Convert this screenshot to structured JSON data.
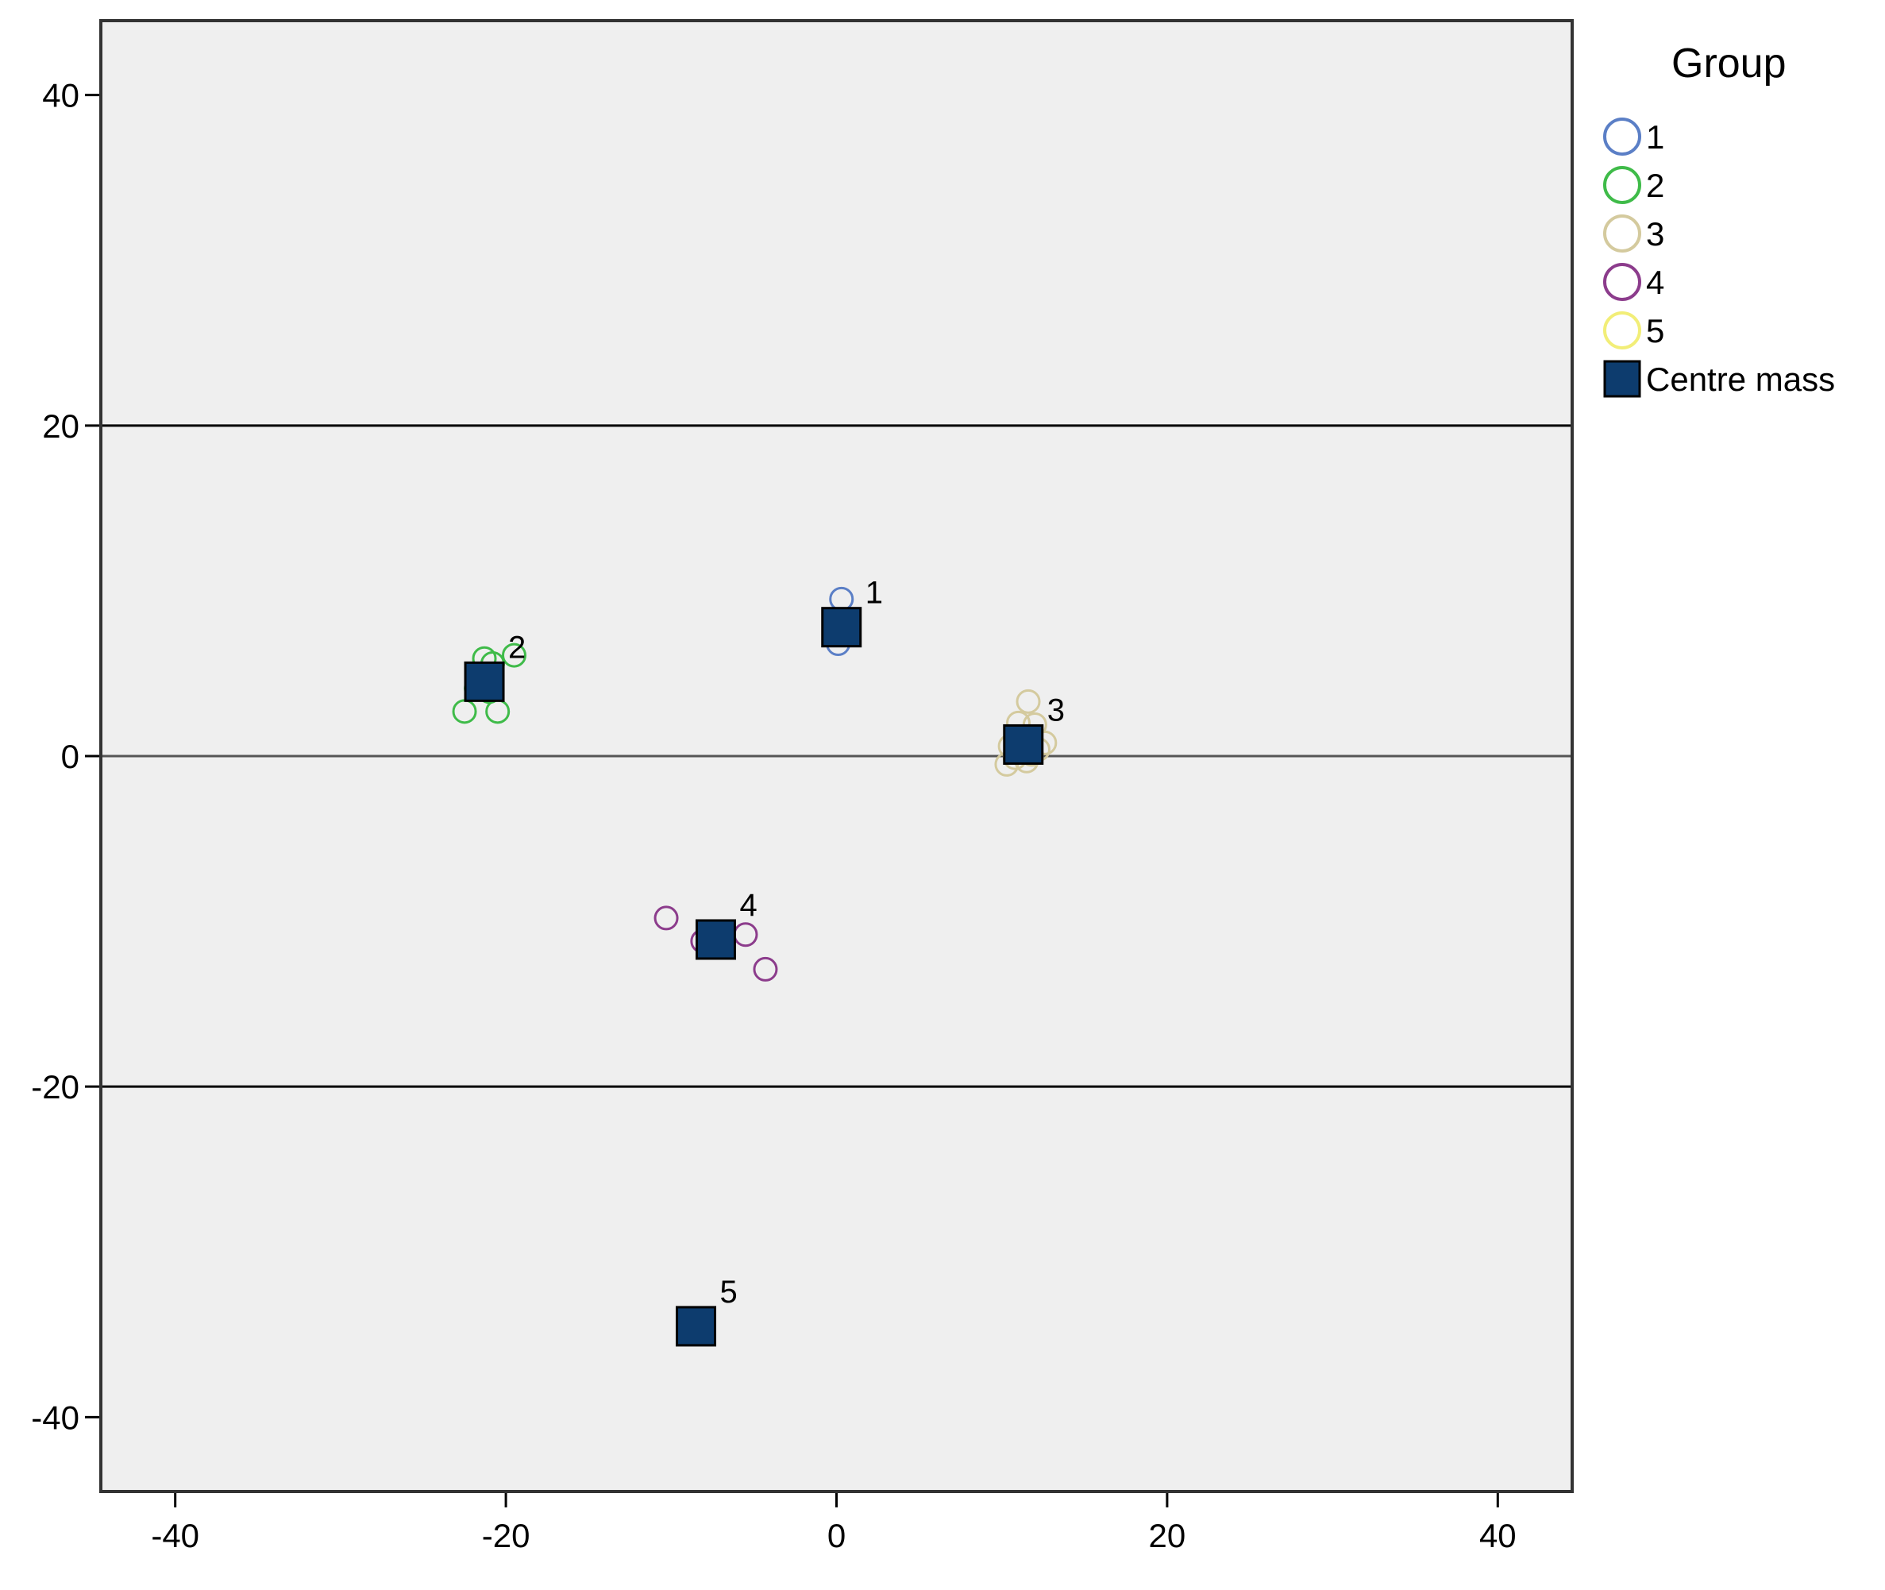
{
  "chart_data": {
    "type": "scatter",
    "xlim": [
      -44.5,
      44.5
    ],
    "ylim": [
      -44.5,
      44.5
    ],
    "x_ticks": [
      -40,
      -20,
      0,
      20,
      40
    ],
    "y_ticks": [
      -40,
      -20,
      0,
      20,
      40
    ],
    "x_tick_labels": [
      "-40",
      "-20",
      "0",
      "20",
      "40"
    ],
    "y_tick_labels": [
      "-40",
      "-20",
      "0",
      "20",
      "40"
    ],
    "reference_lines_y": [
      -20,
      0,
      20
    ],
    "legend": {
      "title": "Group",
      "placement": "top-right outside plot",
      "centroid_label": "Centre mass"
    },
    "colors": {
      "background": "#efefef",
      "centroid_fill": "#0d3c6e",
      "centroid_stroke": "#000000"
    },
    "series": [
      {
        "name": "1",
        "color": "#5b7fc6",
        "points": [
          [
            0.3,
            9.5
          ],
          [
            0.2,
            8.2
          ],
          [
            0.1,
            6.8
          ]
        ]
      },
      {
        "name": "2",
        "color": "#3fbb49",
        "points": [
          [
            -22.5,
            2.7
          ],
          [
            -20.5,
            2.7
          ],
          [
            -21.3,
            5.9
          ],
          [
            -20.8,
            5.6
          ],
          [
            -19.5,
            6.1
          ],
          [
            -21.8,
            4.1
          ],
          [
            -21.0,
            3.9
          ]
        ]
      },
      {
        "name": "3",
        "color": "#d4ca9e",
        "points": [
          [
            11.6,
            3.3
          ],
          [
            11.0,
            2.0
          ],
          [
            12.0,
            1.9
          ],
          [
            10.5,
            0.6
          ],
          [
            11.3,
            0.8
          ],
          [
            12.6,
            0.8
          ],
          [
            10.8,
            -0.1
          ],
          [
            11.8,
            0.1
          ],
          [
            10.3,
            -0.5
          ],
          [
            11.5,
            -0.3
          ],
          [
            12.2,
            0.4
          ]
        ]
      },
      {
        "name": "4",
        "color": "#8c3c8c",
        "points": [
          [
            -10.3,
            -9.8
          ],
          [
            -8.1,
            -11.2
          ],
          [
            -5.5,
            -10.8
          ],
          [
            -4.3,
            -12.9
          ],
          [
            -7.0,
            -11.0
          ]
        ]
      },
      {
        "name": "5",
        "color": "#f2ee78",
        "points": []
      }
    ],
    "centroids": [
      {
        "label": "1",
        "x": 0.3,
        "y": 7.8
      },
      {
        "label": "2",
        "x": -21.3,
        "y": 4.5
      },
      {
        "label": "3",
        "x": 11.3,
        "y": 0.7
      },
      {
        "label": "4",
        "x": -7.3,
        "y": -11.1
      },
      {
        "label": "5",
        "x": -8.5,
        "y": -34.5
      }
    ]
  }
}
